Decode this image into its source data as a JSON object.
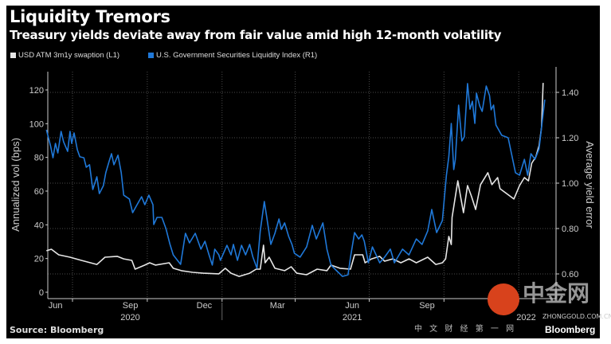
{
  "header": {
    "title": "Liquidity Tremors",
    "subtitle": "Treasury yields deviate away from fair value amid high 12-month volatility"
  },
  "footer": {
    "source": "Source: Bloomberg",
    "brand": "Bloomberg"
  },
  "watermark": {
    "text": "中金网",
    "url": "ZHONGGOLD.COM.CN",
    "tagline": "中 文 财 经 第 一 网"
  },
  "colors": {
    "background": "#000000",
    "series_white": "#e6e6e6",
    "series_blue": "#1f78d8",
    "grid": "#555555"
  },
  "chart_data": {
    "type": "line",
    "title": "Liquidity Tremors",
    "subtitle": "Treasury yields deviate away from fair value amid high 12-month volatility",
    "ylabel_left": "Annualized vol (bps)",
    "ylabel_right": "Average yield error",
    "ylim_left": [
      0,
      120
    ],
    "ylim_right": [
      0.6,
      1.4
    ],
    "yticks_left": [
      "0",
      "20",
      "40",
      "60",
      "80",
      "100",
      "120"
    ],
    "yticks_right": [
      "0.60",
      "0.80",
      "1.00",
      "1.20",
      "1.40"
    ],
    "xticks": [
      {
        "label": "Jun",
        "date": "2020-06-15"
      },
      {
        "label": "Sep",
        "date": "2020-09-15"
      },
      {
        "label": "Dec",
        "date": "2020-12-15"
      },
      {
        "label": "Mar",
        "date": "2021-03-15"
      },
      {
        "label": "Jun",
        "date": "2021-06-15"
      },
      {
        "label": "Sep",
        "date": "2021-09-15"
      }
    ],
    "year_labels": [
      {
        "label": "2020",
        "date": "2020-09-15"
      },
      {
        "label": "2021",
        "date": "2021-06-15"
      },
      {
        "label": "2022",
        "date": "2022-01-15"
      }
    ],
    "grid": true,
    "legend_position": "top-left",
    "series": [
      {
        "name": "USD ATM 3m1y swaption (L1)",
        "axis": "left",
        "color": "#e6e6e6",
        "points": [
          [
            "2020-05-30",
            24.6
          ],
          [
            "2020-06-05",
            25.5
          ],
          [
            "2020-06-14",
            22.2
          ],
          [
            "2020-06-28",
            20.8
          ],
          [
            "2020-07-12",
            18.9
          ],
          [
            "2020-07-31",
            16.5
          ],
          [
            "2020-08-10",
            20.8
          ],
          [
            "2020-08-25",
            21.3
          ],
          [
            "2020-09-02",
            19.8
          ],
          [
            "2020-09-12",
            18.9
          ],
          [
            "2020-09-16",
            13.7
          ],
          [
            "2020-09-28",
            16.1
          ],
          [
            "2020-10-04",
            17.5
          ],
          [
            "2020-10-11",
            16.1
          ],
          [
            "2020-10-28",
            17.5
          ],
          [
            "2020-11-02",
            14.2
          ],
          [
            "2020-11-12",
            12.8
          ],
          [
            "2020-11-26",
            11.8
          ],
          [
            "2020-12-09",
            11.3
          ],
          [
            "2020-12-28",
            10.9
          ],
          [
            "2021-01-05",
            14.2
          ],
          [
            "2021-01-12",
            11.3
          ],
          [
            "2021-01-22",
            9.4
          ],
          [
            "2021-02-04",
            11.3
          ],
          [
            "2021-02-12",
            13.7
          ],
          [
            "2021-02-17",
            13.7
          ],
          [
            "2021-02-21",
            27.9
          ],
          [
            "2021-02-23",
            17.5
          ],
          [
            "2021-02-28",
            20.8
          ],
          [
            "2021-03-07",
            14.2
          ],
          [
            "2021-03-19",
            12.8
          ],
          [
            "2021-03-27",
            15.1
          ],
          [
            "2021-04-03",
            11.3
          ],
          [
            "2021-04-15",
            10.4
          ],
          [
            "2021-04-28",
            13.7
          ],
          [
            "2021-05-10",
            12.8
          ],
          [
            "2021-05-15",
            16.1
          ],
          [
            "2021-05-26",
            14.2
          ],
          [
            "2021-06-08",
            13.7
          ],
          [
            "2021-06-13",
            22.2
          ],
          [
            "2021-06-23",
            22.2
          ],
          [
            "2021-06-26",
            17.5
          ],
          [
            "2021-07-04",
            19.8
          ],
          [
            "2021-07-14",
            21.3
          ],
          [
            "2021-07-20",
            18.4
          ],
          [
            "2021-07-30",
            19.8
          ],
          [
            "2021-08-09",
            17.5
          ],
          [
            "2021-08-19",
            19.8
          ],
          [
            "2021-08-28",
            17.5
          ],
          [
            "2021-09-11",
            20.8
          ],
          [
            "2021-09-21",
            16.5
          ],
          [
            "2021-09-29",
            17.5
          ],
          [
            "2021-10-03",
            19.8
          ],
          [
            "2021-10-07",
            33.1
          ],
          [
            "2021-10-10",
            28.3
          ],
          [
            "2021-10-11",
            44.4
          ],
          [
            "2021-10-18",
            66.1
          ],
          [
            "2021-10-25",
            47.2
          ],
          [
            "2021-10-30",
            63.3
          ],
          [
            "2021-11-04",
            56.7
          ],
          [
            "2021-11-09",
            49.1
          ],
          [
            "2021-11-15",
            63.8
          ],
          [
            "2021-11-24",
            70.9
          ],
          [
            "2021-11-29",
            63.8
          ],
          [
            "2021-12-06",
            68.0
          ],
          [
            "2021-12-09",
            61.4
          ],
          [
            "2021-12-26",
            55.3
          ],
          [
            "2022-01-02",
            63.3
          ],
          [
            "2022-01-08",
            68.0
          ],
          [
            "2022-01-13",
            66.1
          ],
          [
            "2022-01-17",
            76.5
          ],
          [
            "2022-01-22",
            80.3
          ],
          [
            "2022-01-26",
            86.9
          ],
          [
            "2022-01-29",
            97.8
          ],
          [
            "2022-01-31",
            124.2
          ]
        ]
      },
      {
        "name": "U.S. Government Securities Liquidity Index (R1)",
        "axis": "right",
        "color": "#1f78d8",
        "points": [
          [
            "2020-05-30",
            1.235
          ],
          [
            "2020-06-04",
            1.165
          ],
          [
            "2020-06-07",
            1.112
          ],
          [
            "2020-06-10",
            1.175
          ],
          [
            "2020-06-13",
            1.133
          ],
          [
            "2020-06-17",
            1.228
          ],
          [
            "2020-06-20",
            1.182
          ],
          [
            "2020-06-25",
            1.14
          ],
          [
            "2020-06-28",
            1.228
          ],
          [
            "2020-06-30",
            1.175
          ],
          [
            "2020-07-03",
            1.221
          ],
          [
            "2020-07-07",
            1.147
          ],
          [
            "2020-07-10",
            1.116
          ],
          [
            "2020-07-15",
            1.112
          ],
          [
            "2020-07-18",
            1.07
          ],
          [
            "2020-07-22",
            1.081
          ],
          [
            "2020-07-26",
            0.972
          ],
          [
            "2020-07-31",
            1.028
          ],
          [
            "2020-08-03",
            0.954
          ],
          [
            "2020-08-08",
            0.989
          ],
          [
            "2020-08-11",
            1.046
          ],
          [
            "2020-08-15",
            1.095
          ],
          [
            "2020-08-18",
            1.13
          ],
          [
            "2020-08-21",
            1.081
          ],
          [
            "2020-08-26",
            1.123
          ],
          [
            "2020-08-30",
            1.046
          ],
          [
            "2020-09-02",
            0.947
          ],
          [
            "2020-09-09",
            0.93
          ],
          [
            "2020-09-13",
            0.87
          ],
          [
            "2020-09-18",
            0.902
          ],
          [
            "2020-09-24",
            0.94
          ],
          [
            "2020-09-28",
            0.905
          ],
          [
            "2020-10-03",
            0.947
          ],
          [
            "2020-10-08",
            0.905
          ],
          [
            "2020-10-09",
            0.818
          ],
          [
            "2020-10-13",
            0.849
          ],
          [
            "2020-10-19",
            0.849
          ],
          [
            "2020-10-24",
            0.8
          ],
          [
            "2020-10-29",
            0.73
          ],
          [
            "2020-11-02",
            0.684
          ],
          [
            "2020-11-11",
            0.642
          ],
          [
            "2020-11-17",
            0.779
          ],
          [
            "2020-11-22",
            0.737
          ],
          [
            "2020-11-29",
            0.779
          ],
          [
            "2020-12-06",
            0.709
          ],
          [
            "2020-12-11",
            0.744
          ],
          [
            "2020-12-16",
            0.684
          ],
          [
            "2020-12-20",
            0.639
          ],
          [
            "2020-12-23",
            0.709
          ],
          [
            "2020-12-28",
            0.684
          ],
          [
            "2020-12-30",
            0.66
          ],
          [
            "2021-01-07",
            0.726
          ],
          [
            "2021-01-12",
            0.684
          ],
          [
            "2021-01-15",
            0.73
          ],
          [
            "2021-01-20",
            0.66
          ],
          [
            "2021-01-25",
            0.726
          ],
          [
            "2021-01-30",
            0.684
          ],
          [
            "2021-02-04",
            0.73
          ],
          [
            "2021-02-08",
            0.674
          ],
          [
            "2021-02-13",
            0.625
          ],
          [
            "2021-02-17",
            0.789
          ],
          [
            "2021-02-22",
            0.919
          ],
          [
            "2021-02-25",
            0.849
          ],
          [
            "2021-03-02",
            0.73
          ],
          [
            "2021-03-07",
            0.779
          ],
          [
            "2021-03-12",
            0.842
          ],
          [
            "2021-03-15",
            0.796
          ],
          [
            "2021-03-19",
            0.825
          ],
          [
            "2021-03-24",
            0.765
          ],
          [
            "2021-03-28",
            0.73
          ],
          [
            "2021-03-31",
            0.691
          ],
          [
            "2021-04-07",
            0.674
          ],
          [
            "2021-04-15",
            0.719
          ],
          [
            "2021-04-22",
            0.814
          ],
          [
            "2021-04-27",
            0.754
          ],
          [
            "2021-05-05",
            0.825
          ],
          [
            "2021-05-10",
            0.709
          ],
          [
            "2021-05-15",
            0.639
          ],
          [
            "2021-05-22",
            0.614
          ],
          [
            "2021-05-29",
            0.589
          ],
          [
            "2021-06-05",
            0.596
          ],
          [
            "2021-06-08",
            0.674
          ],
          [
            "2021-06-13",
            0.782
          ],
          [
            "2021-06-18",
            0.754
          ],
          [
            "2021-06-22",
            0.772
          ],
          [
            "2021-06-25",
            0.744
          ],
          [
            "2021-06-30",
            0.649
          ],
          [
            "2021-07-05",
            0.719
          ],
          [
            "2021-07-14",
            0.649
          ],
          [
            "2021-07-20",
            0.674
          ],
          [
            "2021-07-27",
            0.709
          ],
          [
            "2021-08-01",
            0.649
          ],
          [
            "2021-08-11",
            0.709
          ],
          [
            "2021-08-19",
            0.684
          ],
          [
            "2021-08-28",
            0.754
          ],
          [
            "2021-09-04",
            0.73
          ],
          [
            "2021-09-11",
            0.789
          ],
          [
            "2021-09-16",
            0.884
          ],
          [
            "2021-09-22",
            0.782
          ],
          [
            "2021-09-29",
            0.835
          ],
          [
            "2021-10-04",
            1.035
          ],
          [
            "2021-10-07",
            1.116
          ],
          [
            "2021-10-10",
            1.263
          ],
          [
            "2021-10-13",
            1.06
          ],
          [
            "2021-10-15",
            1.105
          ],
          [
            "2021-10-19",
            1.344
          ],
          [
            "2021-10-23",
            1.186
          ],
          [
            "2021-10-26",
            1.204
          ],
          [
            "2021-10-30",
            1.439
          ],
          [
            "2021-11-02",
            1.326
          ],
          [
            "2021-11-05",
            1.361
          ],
          [
            "2021-11-08",
            1.263
          ],
          [
            "2021-11-10",
            1.396
          ],
          [
            "2021-11-14",
            1.34
          ],
          [
            "2021-11-17",
            1.316
          ],
          [
            "2021-11-22",
            1.428
          ],
          [
            "2021-11-26",
            1.386
          ],
          [
            "2021-11-28",
            1.323
          ],
          [
            "2021-12-01",
            1.344
          ],
          [
            "2021-12-04",
            1.256
          ],
          [
            "2021-12-11",
            1.211
          ],
          [
            "2021-12-19",
            1.2
          ],
          [
            "2021-12-28",
            1.046
          ],
          [
            "2022-01-02",
            1.035
          ],
          [
            "2022-01-08",
            1.105
          ],
          [
            "2022-01-12",
            1.035
          ],
          [
            "2022-01-16",
            1.13
          ],
          [
            "2022-01-21",
            1.105
          ],
          [
            "2022-01-26",
            1.151
          ],
          [
            "2022-01-29",
            1.246
          ],
          [
            "2022-02-02",
            1.368
          ]
        ]
      }
    ]
  }
}
